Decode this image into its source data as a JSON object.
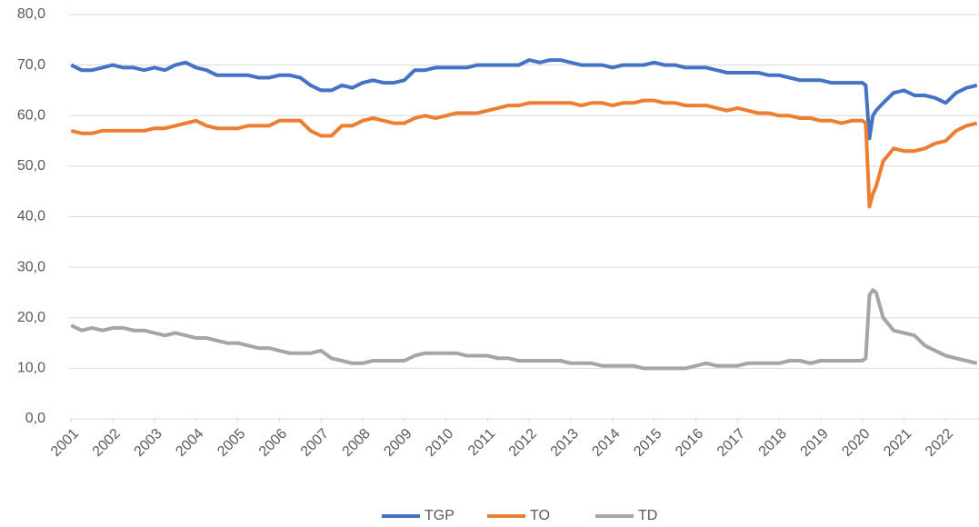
{
  "chart_data": {
    "type": "line",
    "x": [
      2001,
      2001.25,
      2001.5,
      2001.75,
      2002,
      2002.25,
      2002.5,
      2002.75,
      2003,
      2003.25,
      2003.5,
      2003.75,
      2004,
      2004.25,
      2004.5,
      2004.75,
      2005,
      2005.25,
      2005.5,
      2005.75,
      2006,
      2006.25,
      2006.5,
      2006.75,
      2007,
      2007.25,
      2007.5,
      2007.75,
      2008,
      2008.25,
      2008.5,
      2008.75,
      2009,
      2009.25,
      2009.5,
      2009.75,
      2010,
      2010.25,
      2010.5,
      2010.75,
      2011,
      2011.25,
      2011.5,
      2011.75,
      2012,
      2012.25,
      2012.5,
      2012.75,
      2013,
      2013.25,
      2013.5,
      2013.75,
      2014,
      2014.25,
      2014.5,
      2014.75,
      2015,
      2015.25,
      2015.5,
      2015.75,
      2016,
      2016.25,
      2016.5,
      2016.75,
      2017,
      2017.25,
      2017.5,
      2017.75,
      2018,
      2018.25,
      2018.5,
      2018.75,
      2019,
      2019.25,
      2019.5,
      2019.75,
      2020,
      2020.08,
      2020.17,
      2020.25,
      2020.33,
      2020.5,
      2020.75,
      2021,
      2021.25,
      2021.5,
      2021.75,
      2022,
      2022.25,
      2022.5,
      2022.75
    ],
    "series": [
      {
        "name": "TGP",
        "color": "#4472c4",
        "values": [
          70,
          69,
          69,
          69.5,
          70,
          69.5,
          69.5,
          69,
          69.5,
          69,
          70,
          70.5,
          69.5,
          69,
          68,
          68,
          68,
          68,
          67.5,
          67.5,
          68,
          68,
          67.5,
          66,
          65,
          65,
          66,
          65.5,
          66.5,
          67,
          66.5,
          66.5,
          67,
          69,
          69,
          69.5,
          69.5,
          69.5,
          69.5,
          70,
          70,
          70,
          70,
          70,
          71,
          70.5,
          71,
          71,
          70.5,
          70,
          70,
          70,
          69.5,
          70,
          70,
          70,
          70.5,
          70,
          70,
          69.5,
          69.5,
          69.5,
          69,
          68.5,
          68.5,
          68.5,
          68.5,
          68,
          68,
          67.5,
          67,
          67,
          67,
          66.5,
          66.5,
          66.5,
          66.5,
          66,
          55.5,
          60,
          61,
          62.5,
          64.5,
          65,
          64,
          64,
          63.5,
          62.5,
          64.5,
          65.5,
          66
        ]
      },
      {
        "name": "TO",
        "color": "#ed7d31",
        "values": [
          57,
          56.5,
          56.5,
          57,
          57,
          57,
          57,
          57,
          57.5,
          57.5,
          58,
          58.5,
          59,
          58,
          57.5,
          57.5,
          57.5,
          58,
          58,
          58,
          59,
          59,
          59,
          57,
          56,
          56,
          58,
          58,
          59,
          59.5,
          59,
          58.5,
          58.5,
          59.5,
          60,
          59.5,
          60,
          60.5,
          60.5,
          60.5,
          61,
          61.5,
          62,
          62,
          62.5,
          62.5,
          62.5,
          62.5,
          62.5,
          62,
          62.5,
          62.5,
          62,
          62.5,
          62.5,
          63,
          63,
          62.5,
          62.5,
          62,
          62,
          62,
          61.5,
          61,
          61.5,
          61,
          60.5,
          60.5,
          60,
          60,
          59.5,
          59.5,
          59,
          59,
          58.5,
          59,
          59,
          58.5,
          42,
          44.5,
          46,
          51,
          53.5,
          53,
          53,
          53.5,
          54.5,
          55,
          57,
          58,
          58.5
        ]
      },
      {
        "name": "TD",
        "color": "#a5a5a5",
        "values": [
          18.5,
          17.5,
          18,
          17.5,
          18,
          18,
          17.5,
          17.5,
          17,
          16.5,
          17,
          16.5,
          16,
          16,
          15.5,
          15,
          15,
          14.5,
          14,
          14,
          13.5,
          13,
          13,
          13,
          13.5,
          12,
          11.5,
          11,
          11,
          11.5,
          11.5,
          11.5,
          11.5,
          12.5,
          13,
          13,
          13,
          13,
          12.5,
          12.5,
          12.5,
          12,
          12,
          11.5,
          11.5,
          11.5,
          11.5,
          11.5,
          11,
          11,
          11,
          10.5,
          10.5,
          10.5,
          10.5,
          10,
          10,
          10,
          10,
          10,
          10.5,
          11,
          10.5,
          10.5,
          10.5,
          11,
          11,
          11,
          11,
          11.5,
          11.5,
          11,
          11.5,
          11.5,
          11.5,
          11.5,
          11.5,
          12,
          24.5,
          25.5,
          25,
          20,
          17.5,
          17,
          16.5,
          14.5,
          13.5,
          12.5,
          12,
          11.5,
          11
        ]
      }
    ],
    "xlim": [
      2000.95,
      2022.8
    ],
    "xticks": [
      2001,
      2002,
      2003,
      2004,
      2005,
      2006,
      2007,
      2008,
      2009,
      2010,
      2011,
      2012,
      2013,
      2014,
      2015,
      2016,
      2017,
      2018,
      2019,
      2020,
      2021,
      2022
    ],
    "ylim": [
      0,
      80
    ],
    "yticks": [
      {
        "value": 0,
        "label": "0,0"
      },
      {
        "value": 10,
        "label": "10,0"
      },
      {
        "value": 20,
        "label": "20,0"
      },
      {
        "value": 30,
        "label": "30,0"
      },
      {
        "value": 40,
        "label": "40,0"
      },
      {
        "value": 50,
        "label": "50,0"
      },
      {
        "value": 60,
        "label": "60,0"
      },
      {
        "value": 70,
        "label": "70,0"
      },
      {
        "value": 80,
        "label": "80,0"
      }
    ],
    "grid": true,
    "legend": "bottom"
  }
}
